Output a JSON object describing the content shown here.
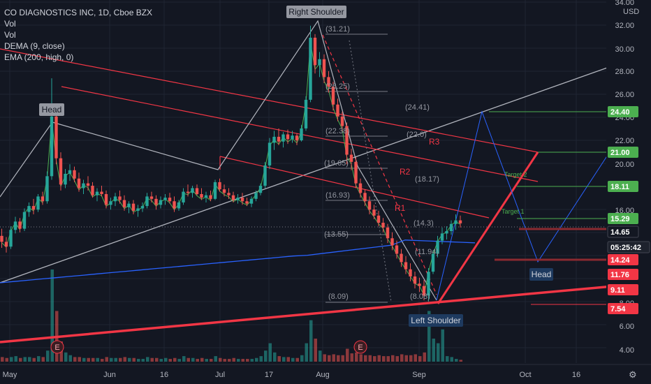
{
  "header": {
    "title": "CO DIAGNOSTICS INC, 1D, Cboe BZX",
    "indicators": [
      "Vol",
      "Vol",
      "DEMA (9, close)",
      "EMA (200, high, 0)"
    ]
  },
  "axis": {
    "currency": "USD",
    "y_ticks": [
      "34.00",
      "32.00",
      "30.00",
      "28.00",
      "26.00",
      "24.00",
      "22.00",
      "20.00",
      "16.00",
      "8.00",
      "6.00",
      "4.00"
    ],
    "x_ticks": [
      "May",
      "Jun",
      "16",
      "Jul",
      "17",
      "Aug",
      "Sep",
      "Oct",
      "16"
    ]
  },
  "price_tags": [
    {
      "label": "24.40",
      "color": "#4caf50"
    },
    {
      "label": "21.00",
      "color": "#4caf50"
    },
    {
      "label": "18.11",
      "color": "#4caf50"
    },
    {
      "label": "15.29",
      "color": "#4caf50"
    },
    {
      "label": "14.65",
      "color": "#1e222d"
    },
    {
      "label": "05:25:42",
      "color": "#1e222d"
    },
    {
      "label": "14.24",
      "color": "#f23645"
    },
    {
      "label": "11.76",
      "color": "#f23645"
    },
    {
      "label": "9.11",
      "color": "#f23645"
    },
    {
      "label": "7.54",
      "color": "#f23645"
    }
  ],
  "pattern_labels": {
    "head_left": "Head",
    "right_shoulder": "Right Shoulder",
    "left_shoulder": "Left Shoulder",
    "head_right": "Head"
  },
  "resistance_labels": [
    "R1",
    "R2",
    "R3"
  ],
  "target_labels": [
    "Target 1",
    "Target 2"
  ],
  "fib_labels": [
    "(31.21)",
    "(26.25)",
    "(22.38)",
    "(19.65)",
    "(16.93)",
    "(13.55)",
    "(8.09)",
    "(24.41)",
    "(22.0)",
    "(18.17)",
    "(14.3)",
    "(11.94)",
    "(8.08)"
  ],
  "earnings_marker": "E",
  "colors": {
    "background": "#131722",
    "up": "#26a69a",
    "down": "#ef5350",
    "trendline": "#f23645",
    "target": "#4caf50",
    "ema": "#2962ff"
  },
  "chart_data": {
    "type": "candlestick",
    "title": "CO DIAGNOSTICS INC, 1D, Cboe BZX",
    "y_unit": "USD",
    "ylim": [
      3,
      34
    ],
    "x": [
      "Apr 26",
      "Apr 27",
      "Apr 28",
      "Apr 29",
      "Apr 30",
      "May 3",
      "May 4",
      "May 5",
      "May 6",
      "May 7",
      "May 10",
      "May 11",
      "May 12",
      "May 13",
      "May 14",
      "May 17",
      "May 18",
      "May 19",
      "May 20",
      "May 21",
      "May 24",
      "May 25",
      "May 26",
      "May 27",
      "May 28",
      "Jun 1",
      "Jun 2",
      "Jun 3",
      "Jun 4",
      "Jun 7",
      "Jun 8",
      "Jun 9",
      "Jun 10",
      "Jun 11",
      "Jun 14",
      "Jun 15",
      "Jun 16",
      "Jun 17",
      "Jun 18",
      "Jun 21",
      "Jun 22",
      "Jun 23",
      "Jun 24",
      "Jun 25",
      "Jun 28",
      "Jun 29",
      "Jun 30",
      "Jul 1",
      "Jul 2",
      "Jul 6",
      "Jul 7",
      "Jul 8",
      "Jul 9",
      "Jul 12",
      "Jul 13",
      "Jul 14",
      "Jul 15",
      "Jul 16",
      "Jul 19",
      "Jul 20",
      "Jul 21",
      "Jul 22",
      "Jul 23",
      "Jul 26",
      "Jul 27",
      "Jul 28",
      "Jul 29",
      "Jul 30",
      "Aug 2",
      "Aug 3",
      "Aug 4",
      "Aug 5",
      "Aug 6",
      "Aug 9",
      "Aug 10",
      "Aug 11",
      "Aug 12",
      "Aug 13",
      "Aug 16",
      "Aug 17",
      "Aug 18",
      "Aug 19",
      "Aug 20",
      "Aug 23",
      "Aug 24",
      "Aug 25",
      "Aug 26",
      "Aug 27",
      "Aug 30",
      "Aug 31",
      "Sep 1",
      "Sep 2",
      "Sep 3",
      "Sep 7",
      "Sep 8",
      "Sep 9",
      "Sep 10",
      "Sep 13",
      "Sep 14",
      "Sep 15",
      "Sep 16",
      "Sep 17"
    ],
    "ohlc": [
      [
        13.6,
        14.2,
        12.6,
        13.1
      ],
      [
        13.1,
        13.5,
        12.2,
        12.7
      ],
      [
        12.7,
        14.4,
        12.5,
        14.1
      ],
      [
        14.1,
        15.2,
        13.8,
        14.8
      ],
      [
        14.8,
        15.1,
        13.9,
        14.2
      ],
      [
        14.2,
        15.9,
        14.0,
        15.6
      ],
      [
        15.6,
        16.4,
        15.2,
        16.1
      ],
      [
        16.1,
        16.7,
        15.4,
        15.8
      ],
      [
        15.8,
        17.1,
        15.6,
        16.9
      ],
      [
        16.9,
        17.3,
        16.2,
        16.5
      ],
      [
        16.5,
        19.0,
        16.3,
        18.6
      ],
      [
        18.6,
        26.8,
        18.3,
        23.6
      ],
      [
        23.6,
        24.3,
        19.6,
        20.1
      ],
      [
        20.1,
        20.6,
        17.4,
        17.9
      ],
      [
        17.9,
        19.2,
        17.6,
        18.8
      ],
      [
        18.8,
        19.6,
        18.2,
        19.1
      ],
      [
        19.1,
        19.4,
        18.1,
        18.4
      ],
      [
        18.4,
        18.9,
        17.3,
        17.6
      ],
      [
        17.6,
        18.3,
        17.1,
        18.0
      ],
      [
        18.0,
        18.6,
        17.4,
        17.8
      ],
      [
        17.8,
        18.1,
        16.8,
        17.0
      ],
      [
        17.0,
        17.6,
        16.5,
        17.3
      ],
      [
        17.3,
        17.8,
        16.9,
        17.1
      ],
      [
        17.1,
        17.4,
        15.9,
        16.2
      ],
      [
        16.2,
        16.8,
        15.8,
        16.5
      ],
      [
        16.5,
        17.2,
        16.1,
        16.9
      ],
      [
        16.9,
        17.4,
        16.3,
        16.6
      ],
      [
        16.6,
        17.0,
        15.7,
        16.0
      ],
      [
        16.0,
        16.5,
        15.5,
        16.3
      ],
      [
        16.3,
        16.6,
        15.4,
        15.7
      ],
      [
        15.7,
        16.2,
        15.2,
        15.9
      ],
      [
        15.9,
        16.4,
        15.6,
        16.1
      ],
      [
        16.1,
        17.2,
        15.9,
        16.9
      ],
      [
        16.9,
        17.3,
        16.4,
        16.7
      ],
      [
        16.7,
        17.0,
        15.8,
        16.2
      ],
      [
        16.2,
        16.9,
        15.9,
        16.6
      ],
      [
        16.6,
        17.1,
        16.2,
        16.8
      ],
      [
        16.8,
        17.2,
        16.3,
        16.5
      ],
      [
        16.5,
        16.9,
        15.6,
        15.9
      ],
      [
        15.9,
        16.6,
        15.7,
        16.4
      ],
      [
        16.4,
        17.6,
        16.2,
        17.3
      ],
      [
        17.3,
        17.9,
        16.9,
        17.2
      ],
      [
        17.2,
        17.8,
        16.8,
        17.6
      ],
      [
        17.6,
        17.9,
        17.0,
        17.1
      ],
      [
        17.1,
        17.6,
        16.6,
        16.8
      ],
      [
        16.8,
        17.3,
        16.4,
        17.0
      ],
      [
        17.0,
        17.4,
        16.5,
        16.7
      ],
      [
        16.7,
        18.3,
        16.6,
        18.1
      ],
      [
        18.1,
        18.4,
        17.3,
        17.5
      ],
      [
        17.5,
        17.9,
        16.9,
        17.2
      ],
      [
        17.2,
        17.6,
        16.7,
        17.0
      ],
      [
        17.0,
        17.3,
        16.4,
        16.6
      ],
      [
        16.6,
        17.1,
        16.3,
        16.8
      ],
      [
        16.8,
        17.2,
        16.2,
        16.5
      ],
      [
        16.5,
        16.8,
        16.1,
        16.3
      ],
      [
        16.3,
        16.9,
        16.0,
        16.7
      ],
      [
        16.7,
        17.4,
        16.5,
        17.2
      ],
      [
        17.2,
        18.0,
        17.0,
        17.8
      ],
      [
        17.8,
        19.8,
        17.6,
        19.5
      ],
      [
        19.5,
        21.8,
        19.2,
        21.4
      ],
      [
        21.4,
        22.4,
        20.8,
        21.9
      ],
      [
        21.9,
        22.6,
        21.2,
        21.5
      ],
      [
        21.5,
        22.3,
        21.0,
        22.1
      ],
      [
        22.1,
        22.5,
        21.3,
        21.7
      ],
      [
        21.7,
        22.4,
        21.4,
        22.0
      ],
      [
        22.0,
        22.2,
        21.2,
        21.6
      ],
      [
        21.6,
        22.9,
        21.5,
        22.6
      ],
      [
        22.6,
        25.3,
        22.4,
        25.0
      ],
      [
        25.0,
        31.2,
        24.8,
        30.2
      ],
      [
        30.2,
        30.5,
        27.2,
        27.9
      ],
      [
        27.9,
        29.0,
        26.9,
        28.4
      ],
      [
        28.4,
        28.8,
        26.4,
        26.9
      ],
      [
        26.9,
        27.4,
        25.6,
        26.1
      ],
      [
        26.1,
        26.5,
        24.1,
        24.6
      ],
      [
        24.6,
        25.1,
        23.2,
        23.6
      ],
      [
        23.6,
        24.0,
        22.3,
        22.8
      ],
      [
        22.8,
        23.1,
        19.6,
        20.4
      ],
      [
        20.4,
        20.9,
        19.1,
        19.8
      ],
      [
        19.8,
        20.2,
        17.6,
        18.0
      ],
      [
        18.0,
        18.4,
        16.8,
        17.2
      ],
      [
        17.2,
        17.5,
        16.1,
        16.5
      ],
      [
        16.5,
        16.9,
        15.4,
        15.8
      ],
      [
        15.8,
        16.2,
        15.0,
        15.3
      ],
      [
        15.3,
        15.7,
        14.4,
        14.7
      ],
      [
        14.7,
        15.1,
        13.9,
        14.3
      ],
      [
        14.3,
        14.6,
        13.0,
        13.4
      ],
      [
        13.4,
        13.9,
        12.4,
        12.8
      ],
      [
        12.8,
        13.2,
        11.7,
        12.1
      ],
      [
        12.1,
        12.5,
        11.0,
        11.4
      ],
      [
        11.4,
        11.9,
        10.4,
        10.8
      ],
      [
        10.8,
        11.3,
        9.8,
        10.2
      ],
      [
        10.2,
        10.6,
        9.2,
        9.6
      ],
      [
        9.6,
        10.1,
        8.9,
        9.4
      ],
      [
        9.4,
        9.9,
        8.2,
        8.6
      ],
      [
        8.6,
        10.9,
        8.1,
        10.6
      ],
      [
        10.6,
        12.4,
        10.4,
        12.1
      ],
      [
        12.1,
        13.6,
        11.8,
        13.2
      ],
      [
        13.2,
        14.3,
        12.9,
        13.8
      ],
      [
        13.8,
        14.4,
        13.3,
        14.0
      ],
      [
        14.0,
        14.9,
        13.7,
        14.6
      ],
      [
        14.6,
        15.4,
        14.1,
        14.9
      ],
      [
        14.9,
        15.3,
        14.3,
        14.65
      ]
    ],
    "volume_relative": [
      0.05,
      0.04,
      0.05,
      0.06,
      0.04,
      0.05,
      0.05,
      0.04,
      0.06,
      0.05,
      0.12,
      1.0,
      0.55,
      0.22,
      0.1,
      0.07,
      0.05,
      0.05,
      0.04,
      0.04,
      0.04,
      0.04,
      0.03,
      0.05,
      0.04,
      0.04,
      0.04,
      0.05,
      0.04,
      0.04,
      0.03,
      0.03,
      0.05,
      0.04,
      0.04,
      0.03,
      0.04,
      0.03,
      0.04,
      0.03,
      0.06,
      0.04,
      0.04,
      0.03,
      0.04,
      0.03,
      0.03,
      0.06,
      0.04,
      0.03,
      0.03,
      0.04,
      0.03,
      0.03,
      0.03,
      0.03,
      0.04,
      0.06,
      0.12,
      0.2,
      0.1,
      0.06,
      0.05,
      0.05,
      0.04,
      0.04,
      0.07,
      0.2,
      0.45,
      0.25,
      0.12,
      0.08,
      0.07,
      0.08,
      0.07,
      0.07,
      0.14,
      0.09,
      0.1,
      0.08,
      0.07,
      0.07,
      0.06,
      0.07,
      0.06,
      0.06,
      0.07,
      0.06,
      0.08,
      0.07,
      0.07,
      0.08,
      0.06,
      0.1,
      0.55,
      0.25,
      0.2,
      0.35,
      0.06,
      0.05,
      0.03,
      0.02
    ]
  }
}
